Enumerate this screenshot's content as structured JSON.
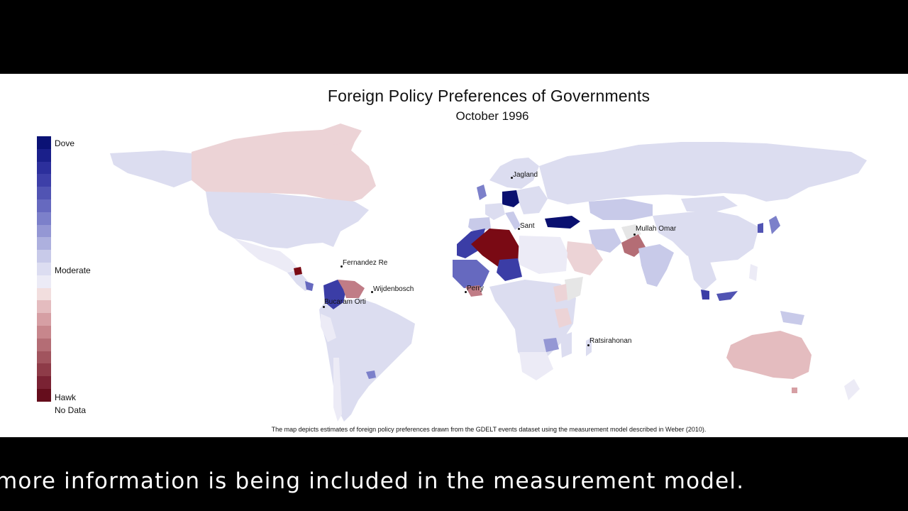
{
  "map": {
    "title": "Foreign Policy Preferences of Governments",
    "subtitle": "October 1996",
    "caption": "The map depicts estimates of foreign policy preferences drawn from the GDELT events dataset using the measurement model described in Weber (2010).",
    "legend": {
      "top_label": "Dove",
      "middle_label": "Moderate",
      "bottom_label": "Hawk",
      "nodata_label": "No Data",
      "colors": [
        "#0b1275",
        "#1a1f8a",
        "#2c2f9c",
        "#3d3fa8",
        "#5154b3",
        "#6669bf",
        "#7c80ca",
        "#9497d4",
        "#adb0de",
        "#c8cae9",
        "#dcddf1",
        "#ecebf6",
        "#f2dede",
        "#e4bcbf",
        "#d69fa4",
        "#c7868c",
        "#b46d75",
        "#a1545e",
        "#8e3b48",
        "#7a2233",
        "#650d1c"
      ]
    },
    "cities": [
      {
        "name": "Jagland"
      },
      {
        "name": "Sant"
      },
      {
        "name": "Mullah Omar"
      },
      {
        "name": "Fernandez Re"
      },
      {
        "name": "Wijdenbosch"
      },
      {
        "name": "Perry"
      },
      {
        "name": "Bucaram Orti"
      },
      {
        "name": "Ratsirahonan"
      }
    ],
    "colors": {
      "light_dove": "#dcddf0",
      "light_hawk": "#ecd3d6",
      "strong_dove": "#0a1070",
      "dove_blue": "#3b3da6",
      "strong_hawk": "#7a0a14",
      "mid_hawk": "#c07c86",
      "nodata": "#e6e6e6"
    }
  },
  "video": {
    "caption": "more information is being included in the measurement model."
  }
}
